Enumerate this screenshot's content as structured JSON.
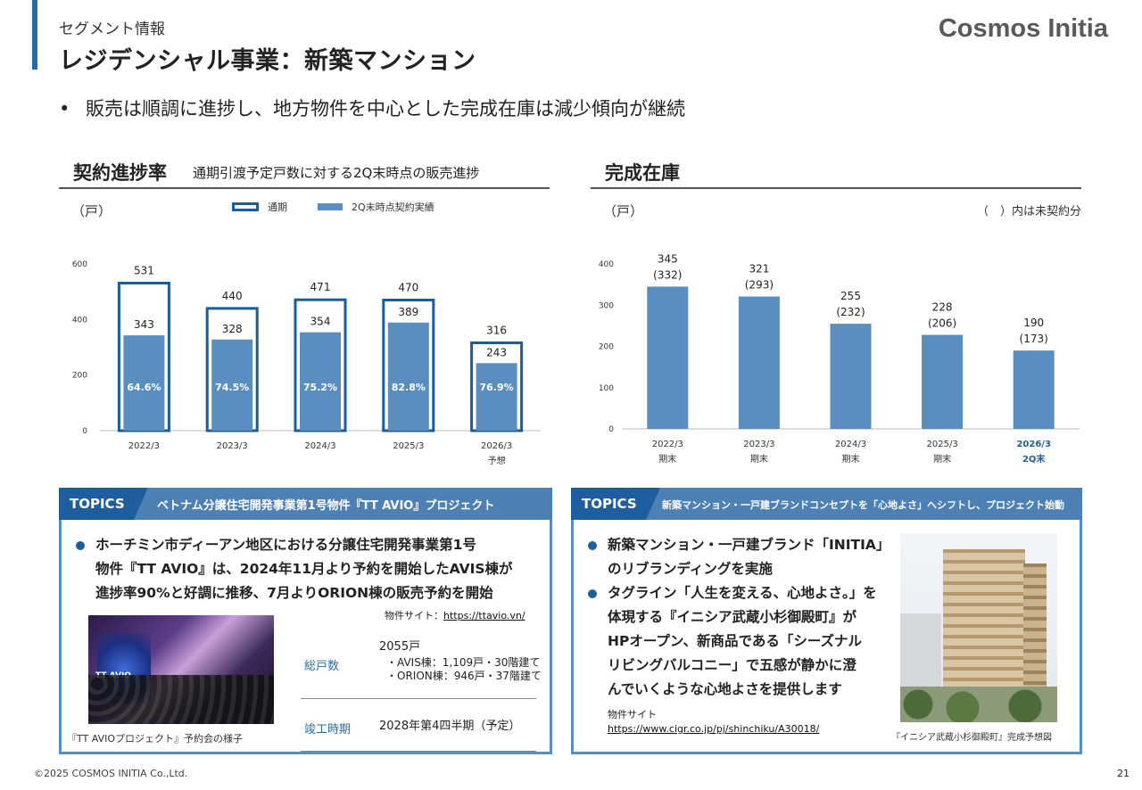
{
  "header": {
    "section": "セグメント情報",
    "title": "レジデンシャル事業：新築マンション",
    "logo": "Cosmos Initia"
  },
  "bullet": "販売は順調に進捗し、地方物件を中心とした完成在庫は減少傾向が継続",
  "left_panel": {
    "title": "契約進捗率",
    "subtitle": "通期引渡予定戸数に対する2Q末時点の販売進捗",
    "unit": "（戸）",
    "legend_total": "通期",
    "legend_actual": "2Q末時点契約実績"
  },
  "right_panel": {
    "title": "完成在庫",
    "unit": "（戸）",
    "note": "（　）内は未契約分"
  },
  "chart_data": [
    {
      "type": "bar",
      "title": "契約進捗率",
      "ylabel": "（戸）",
      "ylim": [
        0,
        600
      ],
      "yticks": [
        0,
        200,
        400,
        600
      ],
      "categories": [
        "2022/3",
        "2023/3",
        "2024/3",
        "2025/3",
        "2026/3"
      ],
      "category_sub": [
        "",
        "",
        "",
        "",
        "予想"
      ],
      "series": [
        {
          "name": "通期",
          "values": [
            531,
            440,
            471,
            470,
            316
          ],
          "labels": [
            "531",
            "440",
            "471",
            "470",
            "316"
          ]
        },
        {
          "name": "2Q末時点契約実績",
          "values": [
            343,
            328,
            354,
            389,
            243
          ],
          "labels": [
            "343",
            "328",
            "354",
            "389",
            "243"
          ]
        }
      ],
      "rates": [
        "64.6%",
        "74.5%",
        "75.2%",
        "82.8%",
        "76.9%"
      ]
    },
    {
      "type": "bar",
      "title": "完成在庫",
      "ylabel": "（戸）",
      "ylim": [
        0,
        400
      ],
      "yticks": [
        0,
        100,
        200,
        300,
        400
      ],
      "categories": [
        "2022/3",
        "2023/3",
        "2024/3",
        "2025/3",
        "2026/3"
      ],
      "category_sub": [
        "期末",
        "期末",
        "期末",
        "期末",
        "2Q末"
      ],
      "series": [
        {
          "name": "完成在庫",
          "values": [
            345,
            321,
            255,
            228,
            190
          ],
          "labels": [
            "345",
            "321",
            "255",
            "228",
            "190"
          ]
        }
      ],
      "unsold": [
        "(332)",
        "(293)",
        "(232)",
        "(206)",
        "(173)"
      ]
    }
  ],
  "topic1": {
    "tag": "TOPICS",
    "headline": "ベトナム分譲住宅開発事業第1号物件『TT AVIO』プロジェクト",
    "body": [
      "ホーチミン市ディーアン地区における分譲住宅開発事業第1号",
      "物件『TT AVIO』は、2024年11月より予約を開始したAVIS棟が",
      "進捗率90%と好調に推移、7月よりORION棟の販売予約を開始"
    ],
    "site_label": "物件サイト：",
    "site_url": "https://ttavio.vn/",
    "photo_text": "TT AVIO",
    "caption": "『TT AVIOプロジェクト』予約会の様子",
    "rows": [
      {
        "label": "総戸数",
        "value": "2055戸",
        "details": [
          "・AVIS棟：1,109戸・30階建て",
          "・ORION棟：946戸・37階建て"
        ]
      },
      {
        "label": "竣工時期",
        "value": "2028年第4四半期（予定）",
        "details": []
      }
    ]
  },
  "topic2": {
    "tag": "TOPICS",
    "headline": "新築マンション・一戸建ブランドコンセプトを「心地よさ」へシフトし、プロジェクト始動",
    "bullets": [
      [
        "新築マンション・一戸建ブランド「INITIA」",
        "のリブランディングを実施"
      ],
      [
        "タグライン「人生を変える、心地よさ。」を",
        "体現する『イニシア武蔵小杉御殿町』が",
        "HPオープン、新商品である「シーズナル",
        "リビングバルコニー」で五感が静かに澄",
        "んでいくような心地よさを提供します"
      ]
    ],
    "site_label": "物件サイト",
    "site_url": "https://www.cigr.co.jp/pj/shinchiku/A30018/",
    "caption": "『イニシア武蔵小杉御殿町』完成予想図"
  },
  "footer": {
    "copyright": "©2025 COSMOS INITIA Co.,Ltd.",
    "page": "21"
  },
  "colors": {
    "accent": "#1e5e9e",
    "bar": "#5b8ec0",
    "outline": "#1a5c9c"
  }
}
